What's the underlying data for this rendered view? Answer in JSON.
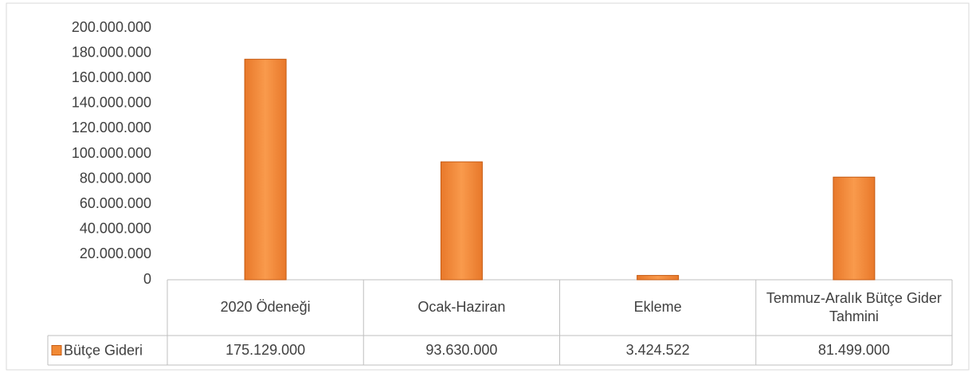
{
  "chart_data": {
    "type": "bar",
    "categories": [
      "2020 Ödeneği",
      "Ocak-Haziran",
      "Ekleme",
      "Temmuz-Aralık Bütçe Gider Tahmini"
    ],
    "series": [
      {
        "name": "Bütçe Gideri",
        "color": "#f28a35",
        "values": [
          175129000,
          93630000,
          3424522,
          81499000
        ],
        "value_labels": [
          "175.129.000",
          "93.630.000",
          "3.424.522",
          "81.499.000"
        ]
      }
    ],
    "ylim": [
      0,
      200000000
    ],
    "yticks": [
      0,
      {
        "value": 20000000,
        "label": "20.000.000"
      },
      {
        "value": 40000000,
        "label": "40.000.000"
      },
      {
        "value": 60000000,
        "label": "60.000.000"
      },
      {
        "value": 80000000,
        "label": "80.000.000"
      },
      {
        "value": 100000000,
        "label": "100.000.000"
      },
      {
        "value": 120000000,
        "label": "120.000.000"
      },
      {
        "value": 140000000,
        "label": "140.000.000"
      },
      {
        "value": 160000000,
        "label": "160.000.000"
      },
      {
        "value": 180000000,
        "label": "180.000.000"
      },
      {
        "value": 200000000,
        "label": "200.000.000"
      }
    ],
    "grid": false
  }
}
